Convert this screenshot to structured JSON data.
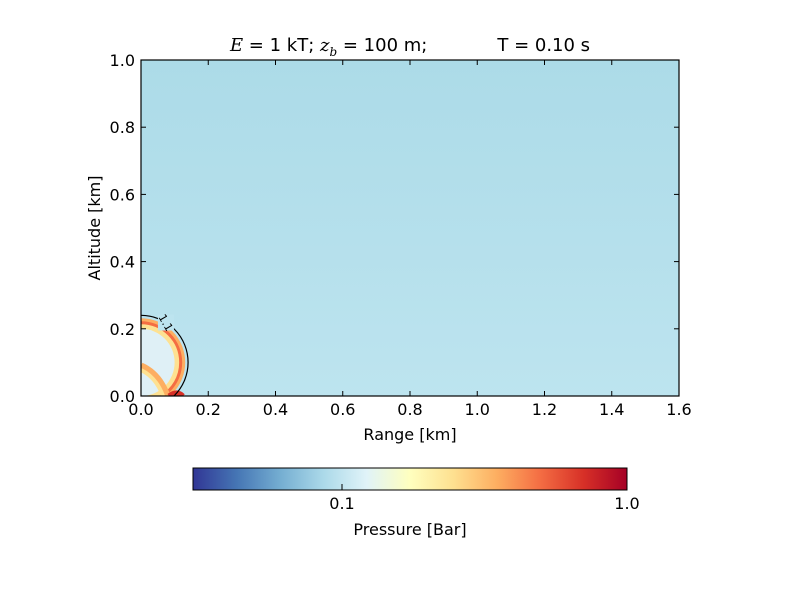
{
  "chart_data": {
    "type": "heatmap",
    "title_parts": {
      "energy_symbol": "E",
      "energy_value": " = 1 kT; ",
      "depth_symbol": "z",
      "depth_subscript": "b",
      "depth_value": " = 100 m;",
      "time": "T =  0.10 s"
    },
    "xlabel": "Range [km]",
    "ylabel": "Altitude [km]",
    "xlim": [
      0.0,
      1.6
    ],
    "ylim": [
      0.0,
      1.0
    ],
    "xticks": [
      0.0,
      0.2,
      0.4,
      0.6,
      0.8,
      1.0,
      1.2,
      1.4,
      1.6
    ],
    "xtick_labels": [
      "0.0",
      "0.2",
      "0.4",
      "0.6",
      "0.8",
      "1.0",
      "1.2",
      "1.4",
      "1.6"
    ],
    "yticks": [
      0.0,
      0.2,
      0.4,
      0.6,
      0.8,
      1.0
    ],
    "ytick_labels": [
      "0.0",
      "0.2",
      "0.4",
      "0.6",
      "0.8",
      "1.0"
    ],
    "background_field": {
      "color_top": "#acdbe8",
      "color_bottom": "#bde4ef",
      "description_value_bar": 0.09
    },
    "shock_front": {
      "center_range_km": 0.0,
      "center_altitude_km": 0.1,
      "outer_radius_km": 0.14,
      "ring_outer_radius_km": 0.13,
      "ring_inner_radius_km": 0.1,
      "interior_color": "#dff0f6",
      "ring_colors": [
        "#fee191",
        "#fdae61",
        "#f46d43",
        "#d73027"
      ]
    },
    "contour": {
      "label": "1.1",
      "color": "#000000"
    },
    "colorbar": {
      "label": "Pressure [Bar]",
      "scale": "log",
      "ticks": [
        0.1,
        1.0
      ],
      "tick_labels": [
        "0.1",
        "1.0"
      ],
      "colormap": [
        "#313695",
        "#4575b4",
        "#74add1",
        "#abd9e9",
        "#e0f3f8",
        "#ffffbf",
        "#fee090",
        "#fdae61",
        "#f46d43",
        "#d73027",
        "#a50026"
      ]
    }
  }
}
